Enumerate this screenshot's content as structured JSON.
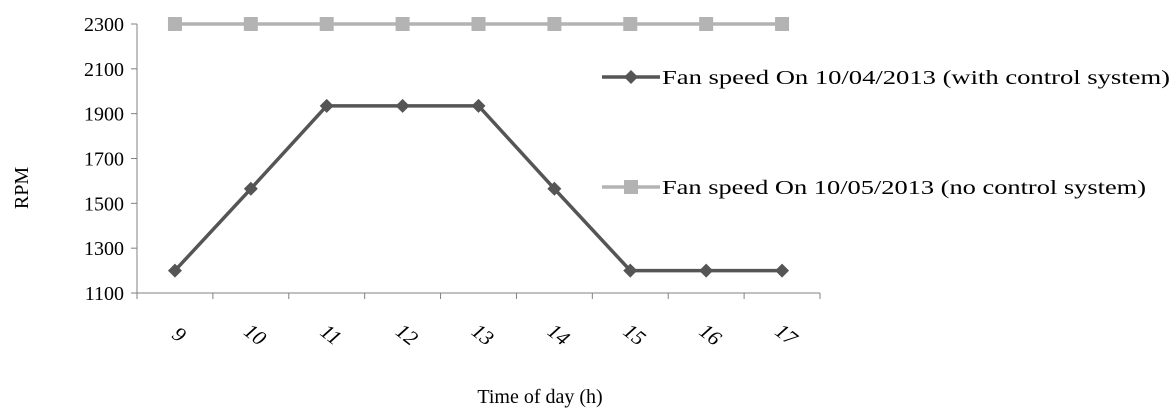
{
  "chart_data": {
    "type": "line",
    "title": "",
    "xlabel": "Time of day  (h)",
    "ylabel": "RPM",
    "categories": [
      "9",
      "10",
      "11",
      "12",
      "13",
      "14",
      "15",
      "16",
      "17"
    ],
    "y_ticks": [
      "1100",
      "1300",
      "1500",
      "1700",
      "1900",
      "2100",
      "2300"
    ],
    "ylim": [
      1100,
      2300
    ],
    "grid": false,
    "legend_position": "right",
    "series": [
      {
        "name": "Fan speed On 10/04/2013 (with control system)",
        "values": [
          1200,
          1565,
          1935,
          1935,
          1935,
          1565,
          1200,
          1200,
          1200
        ],
        "color": "#555555",
        "marker": "diamond"
      },
      {
        "name": "Fan speed On 10/05/2013 (no control system)",
        "values": [
          2300,
          2300,
          2300,
          2300,
          2300,
          2300,
          2300,
          2300,
          2300
        ],
        "color": "#b3b3b3",
        "marker": "square"
      }
    ]
  }
}
